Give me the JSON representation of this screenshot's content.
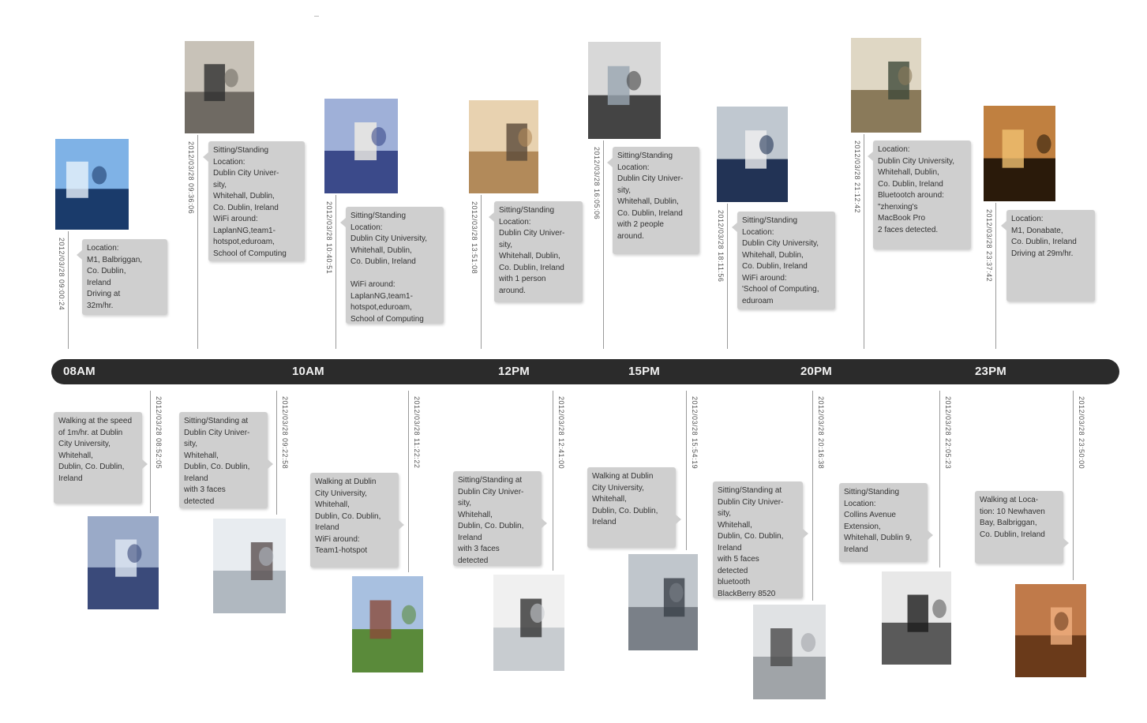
{
  "timeline": {
    "hours": [
      "08AM",
      "10AM",
      "12PM",
      "15PM",
      "20PM",
      "23PM"
    ],
    "top_events": [
      {
        "timestamp": "2012/03/28 09:00:24",
        "text_lines": [
          "Location:",
          "M1, Balbriggan,",
          "Co. Dublin,",
          "Ireland",
          "Driving at",
          "32m/hr."
        ]
      },
      {
        "timestamp": "2012/03/28 09:36:06",
        "text_lines": [
          "Sitting/Standing",
          "Location:",
          "Dublin City Univer-",
          "sity,",
          "Whitehall, Dublin,",
          "Co. Dublin, Ireland",
          "WiFi around:",
          "LaplanNG,team1-",
          "hotspot,eduroam,",
          "School of Computing"
        ]
      },
      {
        "timestamp": "2012/03/28 10:40:51",
        "text_lines": [
          "Sitting/Standing",
          "Location:",
          "Dublin City University,",
          "Whitehall, Dublin,",
          "Co. Dublin, Ireland",
          "",
          "WiFi around:",
          "LaplanNG,team1-",
          "hotspot,eduroam,",
          "School of Computing"
        ]
      },
      {
        "timestamp": "2012/03/28 13:51:08",
        "text_lines": [
          "Sitting/Standing",
          "Location:",
          "Dublin City Univer-",
          "sity,",
          "Whitehall, Dublin,",
          "Co. Dublin, Ireland",
          "with 1 person",
          "around."
        ]
      },
      {
        "timestamp": "2012/03/28 16:05:06",
        "text_lines": [
          "Sitting/Standing",
          "Location:",
          "Dublin City Univer-",
          "sity,",
          "Whitehall, Dublin,",
          "Co. Dublin, Ireland",
          "with 2 people",
          "around."
        ]
      },
      {
        "timestamp": "2012/03/28 18:11:56",
        "text_lines": [
          "Sitting/Standing",
          "Location:",
          "Dublin City University,",
          "Whitehall, Dublin,",
          "Co. Dublin, Ireland",
          "WiFi around:",
          "'School of Computing,",
          "eduroam"
        ]
      },
      {
        "timestamp": "2012/03/28 21:12:42",
        "text_lines": [
          "Location:",
          "Dublin City University,",
          "Whitehall, Dublin,",
          "Co. Dublin, Ireland",
          "Bluetootch around:",
          "\"zhenxing's",
          "MacBook Pro",
          "2 faces detected."
        ]
      },
      {
        "timestamp": "2012/03/28 23:37:42",
        "text_lines": [
          "Location:",
          "M1, Donabate,",
          "Co. Dublin, Ireland",
          "Driving at 29m/hr."
        ]
      }
    ],
    "bottom_events": [
      {
        "timestamp": "2012/03/28 08:52:05",
        "text_lines": [
          "Walking at the speed",
          "of 1m/hr. at Dublin",
          "City University,",
          "Whitehall,",
          "Dublin, Co. Dublin,",
          "Ireland"
        ]
      },
      {
        "timestamp": "2012/03/28 09:22:58",
        "text_lines": [
          "Sitting/Standing at",
          "Dublin City Univer-",
          "sity,",
          "Whitehall,",
          "Dublin, Co. Dublin,",
          "Ireland",
          "with 3 faces",
          "detected"
        ]
      },
      {
        "timestamp": "2012/03/28 11:22:22",
        "text_lines": [
          "Walking at Dublin",
          "City University,",
          "Whitehall,",
          "Dublin, Co. Dublin,",
          "Ireland",
          "WiFi around:",
          "Team1-hotspot"
        ]
      },
      {
        "timestamp": "2012/03/28 12:41:00",
        "text_lines": [
          "Sitting/Standing at",
          "Dublin City Univer-",
          "sity,",
          "Whitehall,",
          "Dublin, Co. Dublin,",
          "Ireland",
          "with 3 faces",
          "detected"
        ]
      },
      {
        "timestamp": "2012/03/28 15:54:19",
        "text_lines": [
          "Walking at Dublin",
          "City University,",
          "Whitehall,",
          "Dublin, Co. Dublin,",
          "Ireland"
        ]
      },
      {
        "timestamp": "2012/03/28 20:16:38",
        "text_lines": [
          "Sitting/Standing at",
          "Dublin City Univer-",
          "sity,",
          "Whitehall,",
          "Dublin, Co. Dublin,",
          "Ireland",
          "with 5 faces",
          "detected",
          "bluetooth",
          "BlackBerry 8520"
        ]
      },
      {
        "timestamp": "2012/03/28 22:05:23",
        "text_lines": [
          "Sitting/Standing",
          "Location:",
          "Collins Avenue",
          "Extension,",
          "Whitehall, Dublin 9,",
          "Ireland"
        ]
      },
      {
        "timestamp": "2012/03/28 23:50:00",
        "text_lines": [
          "Walking at Loca-",
          "tion: 10 Newhaven",
          "Bay, Balbriggan,",
          "Co. Dublin, Ireland"
        ]
      }
    ]
  },
  "colors": {
    "bar": "#2b2b2b",
    "bubble": "#cfcfcf",
    "connector": "#9a9a9a",
    "hour_text": "#f2f2f2"
  }
}
